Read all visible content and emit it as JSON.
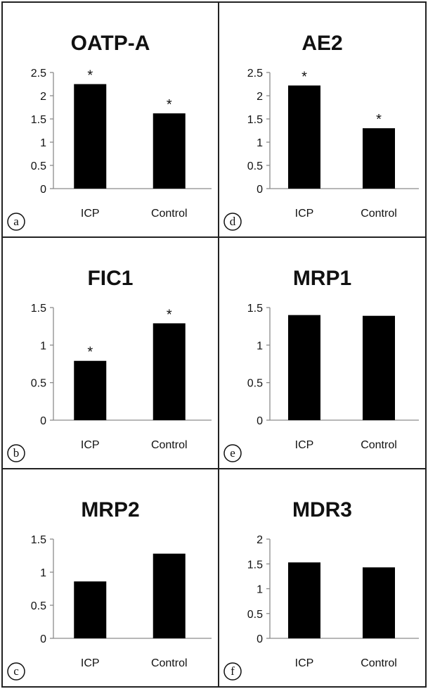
{
  "chart_data": [
    {
      "type": "bar",
      "panel": "a",
      "title": "OATP-A",
      "categories": [
        "ICP",
        "Control"
      ],
      "values": [
        2.25,
        1.62
      ],
      "annotations": [
        "*",
        "*"
      ],
      "ylim": [
        0,
        2.5
      ],
      "yticks": [
        "0",
        "0.5",
        "1",
        "1.5",
        "2",
        "2.5"
      ],
      "grid": false
    },
    {
      "type": "bar",
      "panel": "d",
      "title": "AE2",
      "categories": [
        "ICP",
        "Control"
      ],
      "values": [
        2.22,
        1.3
      ],
      "annotations": [
        "*",
        "*"
      ],
      "ylim": [
        0,
        2.5
      ],
      "yticks": [
        "0",
        "0.5",
        "1",
        "1.5",
        "2",
        "2.5"
      ],
      "grid": false
    },
    {
      "type": "bar",
      "panel": "b",
      "title": "FIC1",
      "categories": [
        "ICP",
        "Control"
      ],
      "values": [
        0.79,
        1.29
      ],
      "annotations": [
        "*",
        "*"
      ],
      "ylim": [
        0,
        1.5
      ],
      "yticks": [
        "0",
        "0.5",
        "1",
        "1.5"
      ],
      "grid": false
    },
    {
      "type": "bar",
      "panel": "e",
      "title": "MRP1",
      "categories": [
        "ICP",
        "Control"
      ],
      "values": [
        1.4,
        1.39
      ],
      "annotations": [
        "",
        ""
      ],
      "ylim": [
        0,
        1.5
      ],
      "yticks": [
        "0",
        "0.5",
        "1",
        "1.5"
      ],
      "grid": false
    },
    {
      "type": "bar",
      "panel": "c",
      "title": "MRP2",
      "categories": [
        "ICP",
        "Control"
      ],
      "values": [
        0.86,
        1.28
      ],
      "annotations": [
        "",
        ""
      ],
      "ylim": [
        0,
        1.5
      ],
      "yticks": [
        "0",
        "0.5",
        "1",
        "1.5"
      ],
      "grid": false
    },
    {
      "type": "bar",
      "panel": "f",
      "title": "MDR3",
      "categories": [
        "ICP",
        "Control"
      ],
      "values": [
        1.53,
        1.43
      ],
      "annotations": [
        "",
        ""
      ],
      "ylim": [
        0,
        2
      ],
      "yticks": [
        "0",
        "0.5",
        "1",
        "1.5",
        "2"
      ],
      "grid": false
    }
  ],
  "colors": {
    "bar": "#000000",
    "axis": "#8c8c8c",
    "border": "#222222",
    "text": "#111111"
  }
}
